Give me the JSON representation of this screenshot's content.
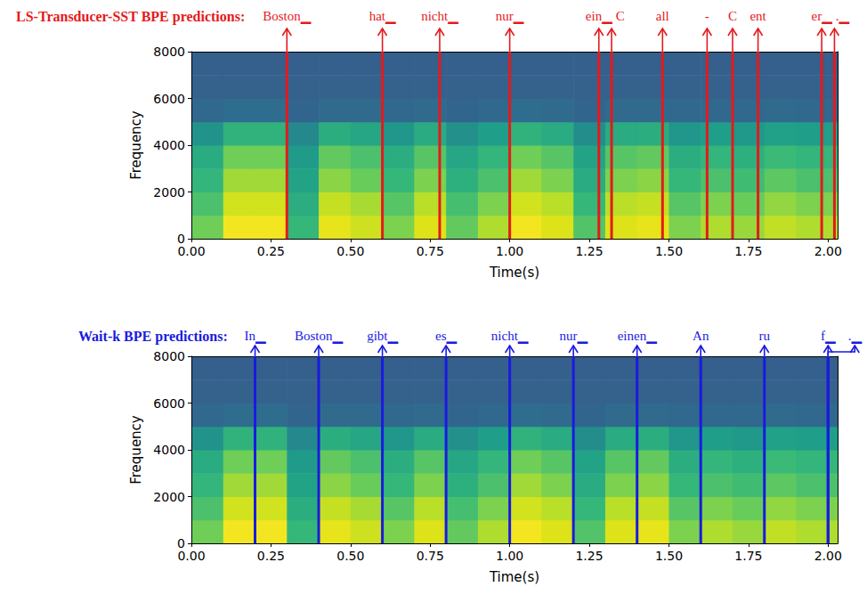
{
  "chart_data": [
    {
      "type": "heatmap",
      "title": "LS-Transducer-SST BPE predictions:",
      "color": "#e41a1c",
      "x_label": "Time(s)",
      "y_label": "Frequency",
      "xlim": [
        0,
        2.03
      ],
      "xticks": [
        {
          "value": 0,
          "label": "0.00"
        },
        {
          "value": 0.25,
          "label": "0.25"
        },
        {
          "value": 0.5,
          "label": "0.50"
        },
        {
          "value": 0.75,
          "label": "0.75"
        },
        {
          "value": 1,
          "label": "1.00"
        },
        {
          "value": 1.25,
          "label": "1.25"
        },
        {
          "value": 1.5,
          "label": "1.50"
        },
        {
          "value": 1.75,
          "label": "1.75"
        },
        {
          "value": 2,
          "label": "2.00"
        }
      ],
      "ylim": [
        0,
        8000
      ],
      "yticks": [
        0,
        2000,
        4000,
        6000,
        8000
      ],
      "grid": false,
      "time_bins": [
        0,
        0.1,
        0.2,
        0.3,
        0.4,
        0.5,
        0.6,
        0.7,
        0.8,
        0.9,
        1.0,
        1.1,
        1.2,
        1.3,
        1.4,
        1.5,
        1.6,
        1.7,
        1.8,
        1.9,
        2.0,
        2.1
      ],
      "freq_bins": [
        0,
        1000,
        2000,
        3000,
        4000,
        5000,
        6000,
        7000,
        8000
      ],
      "cell_range": [
        0,
        1
      ],
      "cells": [
        [
          0.7,
          0.97,
          0.97,
          0.6,
          0.93,
          0.86,
          0.72,
          0.9,
          0.68,
          0.79,
          0.97,
          0.9,
          0.65,
          0.9,
          0.93,
          0.72,
          0.79,
          0.76,
          0.83,
          0.79,
          0.79
        ],
        [
          0.64,
          0.87,
          0.87,
          0.56,
          0.84,
          0.78,
          0.66,
          0.81,
          0.63,
          0.72,
          0.87,
          0.81,
          0.6,
          0.81,
          0.84,
          0.66,
          0.72,
          0.69,
          0.75,
          0.72,
          0.72
        ],
        [
          0.59,
          0.77,
          0.77,
          0.52,
          0.74,
          0.69,
          0.6,
          0.72,
          0.57,
          0.64,
          0.77,
          0.72,
          0.55,
          0.72,
          0.74,
          0.6,
          0.64,
          0.62,
          0.67,
          0.64,
          0.64
        ],
        [
          0.55,
          0.7,
          0.7,
          0.49,
          0.68,
          0.64,
          0.56,
          0.66,
          0.53,
          0.59,
          0.7,
          0.66,
          0.52,
          0.66,
          0.68,
          0.56,
          0.59,
          0.57,
          0.61,
          0.59,
          0.59
        ],
        [
          0.46,
          0.58,
          0.58,
          0.42,
          0.56,
          0.53,
          0.47,
          0.55,
          0.45,
          0.5,
          0.58,
          0.55,
          0.44,
          0.55,
          0.56,
          0.47,
          0.5,
          0.48,
          0.51,
          0.5,
          0.5
        ],
        [
          0.3,
          0.32,
          0.32,
          0.29,
          0.31,
          0.31,
          0.3,
          0.31,
          0.29,
          0.3,
          0.32,
          0.31,
          0.29,
          0.31,
          0.31,
          0.3,
          0.3,
          0.3,
          0.31,
          0.3,
          0.3
        ],
        [
          0.28,
          0.28,
          0.28,
          0.28,
          0.28,
          0.28,
          0.28,
          0.28,
          0.28,
          0.28,
          0.28,
          0.28,
          0.28,
          0.28,
          0.28,
          0.28,
          0.28,
          0.28,
          0.28,
          0.28,
          0.28
        ],
        [
          0.27,
          0.27,
          0.27,
          0.27,
          0.27,
          0.27,
          0.27,
          0.27,
          0.27,
          0.27,
          0.27,
          0.27,
          0.27,
          0.27,
          0.27,
          0.27,
          0.27,
          0.27,
          0.27,
          0.27,
          0.27
        ]
      ],
      "annotations": [
        {
          "text": "Boston▁",
          "x": 0.3
        },
        {
          "text": "hat▁",
          "x": 0.6
        },
        {
          "text": "nicht▁",
          "x": 0.78
        },
        {
          "text": "nur▁",
          "x": 1.0
        },
        {
          "text": "ein▁",
          "x": 1.28
        },
        {
          "text": "C",
          "x": 1.32
        },
        {
          "text": "all",
          "x": 1.48
        },
        {
          "text": "-",
          "x": 1.62
        },
        {
          "text": "C",
          "x": 1.7
        },
        {
          "text": "ent",
          "x": 1.78
        },
        {
          "text": "er▁",
          "x": 1.98
        },
        {
          "text": ".▁",
          "x": 2.02
        }
      ]
    },
    {
      "type": "heatmap",
      "title": "Wait-k BPE predictions:",
      "color": "#1a1adf",
      "x_label": "Time(s)",
      "y_label": "Frequency",
      "xlim": [
        0,
        2.03
      ],
      "xticks": [
        {
          "value": 0,
          "label": "0.00"
        },
        {
          "value": 0.25,
          "label": "0.25"
        },
        {
          "value": 0.5,
          "label": "0.50"
        },
        {
          "value": 0.75,
          "label": "0.75"
        },
        {
          "value": 1,
          "label": "1.00"
        },
        {
          "value": 1.25,
          "label": "1.25"
        },
        {
          "value": 1.5,
          "label": "1.50"
        },
        {
          "value": 1.75,
          "label": "1.75"
        },
        {
          "value": 2,
          "label": "2.00"
        }
      ],
      "ylim": [
        0,
        8000
      ],
      "yticks": [
        0,
        2000,
        4000,
        6000,
        8000
      ],
      "grid": false,
      "time_bins": [
        0,
        0.1,
        0.2,
        0.3,
        0.4,
        0.5,
        0.6,
        0.7,
        0.8,
        0.9,
        1.0,
        1.1,
        1.2,
        1.3,
        1.4,
        1.5,
        1.6,
        1.7,
        1.8,
        1.9,
        2.0,
        2.1
      ],
      "freq_bins": [
        0,
        1000,
        2000,
        3000,
        4000,
        5000,
        6000,
        7000,
        8000
      ],
      "cell_range": [
        0,
        1
      ],
      "cells": [
        [
          0.7,
          0.97,
          0.97,
          0.6,
          0.93,
          0.86,
          0.72,
          0.9,
          0.68,
          0.79,
          0.97,
          0.9,
          0.65,
          0.9,
          0.93,
          0.72,
          0.79,
          0.76,
          0.83,
          0.79,
          0.79
        ],
        [
          0.64,
          0.87,
          0.87,
          0.56,
          0.84,
          0.78,
          0.66,
          0.81,
          0.63,
          0.72,
          0.87,
          0.81,
          0.6,
          0.81,
          0.84,
          0.66,
          0.72,
          0.69,
          0.75,
          0.72,
          0.72
        ],
        [
          0.59,
          0.77,
          0.77,
          0.52,
          0.74,
          0.69,
          0.6,
          0.72,
          0.57,
          0.64,
          0.77,
          0.72,
          0.55,
          0.72,
          0.74,
          0.6,
          0.64,
          0.62,
          0.67,
          0.64,
          0.64
        ],
        [
          0.55,
          0.7,
          0.7,
          0.49,
          0.68,
          0.64,
          0.56,
          0.66,
          0.53,
          0.59,
          0.7,
          0.66,
          0.52,
          0.66,
          0.68,
          0.56,
          0.59,
          0.57,
          0.61,
          0.59,
          0.59
        ],
        [
          0.46,
          0.58,
          0.58,
          0.42,
          0.56,
          0.53,
          0.47,
          0.55,
          0.45,
          0.5,
          0.58,
          0.55,
          0.44,
          0.55,
          0.56,
          0.47,
          0.5,
          0.48,
          0.51,
          0.5,
          0.5
        ],
        [
          0.3,
          0.32,
          0.32,
          0.29,
          0.31,
          0.31,
          0.3,
          0.31,
          0.29,
          0.3,
          0.32,
          0.31,
          0.29,
          0.31,
          0.31,
          0.3,
          0.3,
          0.3,
          0.31,
          0.3,
          0.3
        ],
        [
          0.28,
          0.28,
          0.28,
          0.28,
          0.28,
          0.28,
          0.28,
          0.28,
          0.28,
          0.28,
          0.28,
          0.28,
          0.28,
          0.28,
          0.28,
          0.28,
          0.28,
          0.28,
          0.28,
          0.28,
          0.28
        ],
        [
          0.27,
          0.27,
          0.27,
          0.27,
          0.27,
          0.27,
          0.27,
          0.27,
          0.27,
          0.27,
          0.27,
          0.27,
          0.27,
          0.27,
          0.27,
          0.27,
          0.27,
          0.27,
          0.27,
          0.27,
          0.27
        ]
      ],
      "annotations": [
        {
          "text": "In▁",
          "x": 0.2
        },
        {
          "text": "Boston▁",
          "x": 0.4
        },
        {
          "text": "gibt▁",
          "x": 0.6
        },
        {
          "text": "es▁",
          "x": 0.8
        },
        {
          "text": "nicht▁",
          "x": 1.0
        },
        {
          "text": "nur▁",
          "x": 1.2
        },
        {
          "text": "einen▁",
          "x": 1.4
        },
        {
          "text": "An",
          "x": 1.6
        },
        {
          "text": "ru",
          "x": 1.8
        },
        {
          "text": "f▁",
          "x": 2.0
        },
        {
          "text": ".▁",
          "x": 2.0
        }
      ]
    }
  ]
}
